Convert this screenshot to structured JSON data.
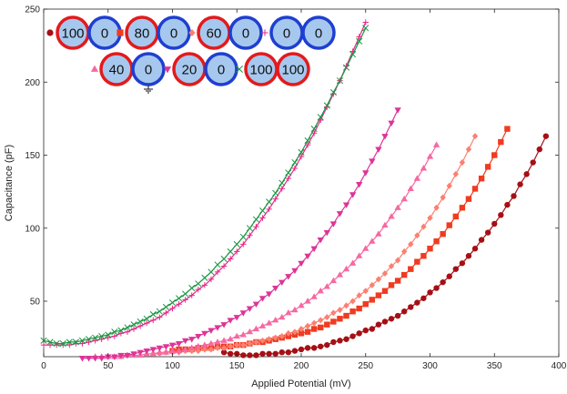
{
  "chart_data": {
    "type": "scatter",
    "xlabel": "Applied Potential (mV)",
    "ylabel": "Capacitance (pF)",
    "xlim": [
      0,
      400
    ],
    "ylim": [
      12,
      250
    ],
    "xticks": [
      "0",
      "50",
      "100",
      "150",
      "200",
      "250",
      "300",
      "350",
      "400"
    ],
    "yticks": [
      "50",
      "100",
      "150",
      "200",
      "250"
    ],
    "grid": false,
    "legend_position": "top-left",
    "series": [
      {
        "name": "100-0",
        "label_a": "100",
        "label_b": "0",
        "marker": "circle",
        "color": "#a50f15",
        "x": [
          140,
          145,
          150,
          155,
          160,
          165,
          170,
          175,
          180,
          185,
          190,
          195,
          200,
          205,
          210,
          215,
          220,
          225,
          230,
          235,
          240,
          245,
          250,
          255,
          260,
          265,
          270,
          275,
          280,
          285,
          290,
          295,
          300,
          305,
          310,
          315,
          320,
          325,
          330,
          335,
          340,
          345,
          350,
          355,
          360,
          365,
          370,
          375,
          380,
          385,
          390
        ],
        "y": [
          15,
          14,
          14,
          13,
          13,
          13,
          14,
          14,
          14,
          15,
          15,
          16,
          17,
          18,
          18,
          19,
          20,
          22,
          23,
          24,
          26,
          28,
          30,
          31,
          34,
          36,
          38,
          40,
          43,
          46,
          49,
          52,
          56,
          59,
          63,
          67,
          72,
          76,
          81,
          86,
          92,
          97,
          103,
          109,
          116,
          122,
          130,
          137,
          145,
          154,
          163
        ]
      },
      {
        "name": "80-0",
        "label_a": "80",
        "label_b": "0",
        "marker": "square",
        "color": "#f03b20",
        "x": [
          100,
          105,
          110,
          115,
          120,
          125,
          130,
          135,
          140,
          145,
          150,
          155,
          160,
          165,
          170,
          175,
          180,
          185,
          190,
          195,
          200,
          205,
          210,
          215,
          220,
          225,
          230,
          235,
          240,
          245,
          250,
          255,
          260,
          265,
          270,
          275,
          280,
          285,
          290,
          295,
          300,
          305,
          310,
          315,
          320,
          325,
          330,
          335,
          340,
          345,
          350,
          355,
          360
        ],
        "y": [
          16,
          17,
          17,
          17,
          18,
          18,
          18,
          19,
          19,
          19,
          20,
          20,
          21,
          22,
          22,
          23,
          24,
          25,
          26,
          27,
          28,
          29,
          31,
          32,
          34,
          36,
          38,
          40,
          43,
          45,
          48,
          51,
          54,
          57,
          61,
          64,
          68,
          72,
          77,
          81,
          86,
          91,
          96,
          102,
          108,
          114,
          120,
          127,
          134,
          142,
          150,
          159,
          168
        ]
      },
      {
        "name": "60-0",
        "label_a": "60",
        "label_b": "0",
        "marker": "diamond",
        "color": "#fb8072",
        "x": [
          85,
          90,
          95,
          100,
          105,
          110,
          115,
          120,
          125,
          130,
          135,
          140,
          145,
          150,
          155,
          160,
          165,
          170,
          175,
          180,
          185,
          190,
          195,
          200,
          205,
          210,
          215,
          220,
          225,
          230,
          235,
          240,
          245,
          250,
          255,
          260,
          265,
          270,
          275,
          280,
          285,
          290,
          295,
          300,
          305,
          310,
          315,
          320,
          325,
          330,
          335
        ],
        "y": [
          14,
          14,
          15,
          15,
          15,
          16,
          16,
          16,
          17,
          17,
          18,
          18,
          19,
          20,
          20,
          21,
          22,
          23,
          24,
          25,
          26,
          28,
          29,
          31,
          33,
          35,
          37,
          39,
          42,
          44,
          47,
          50,
          54,
          57,
          61,
          65,
          69,
          74,
          78,
          84,
          89,
          95,
          101,
          107,
          114,
          121,
          129,
          137,
          145,
          154,
          163
        ]
      },
      {
        "name": "0-0",
        "label_a": "0",
        "label_b": "0",
        "marker": "plus",
        "color": "#e7298a",
        "x": [
          0,
          5,
          10,
          15,
          20,
          25,
          30,
          35,
          40,
          45,
          50,
          55,
          60,
          65,
          70,
          75,
          80,
          85,
          90,
          95,
          100,
          105,
          110,
          115,
          120,
          125,
          130,
          135,
          140,
          145,
          150,
          155,
          160,
          165,
          170,
          175,
          180,
          185,
          190,
          195,
          200,
          205,
          210,
          215,
          220,
          225,
          230,
          235,
          240,
          245,
          250
        ],
        "y": [
          20,
          20,
          20,
          20,
          20,
          21,
          21,
          22,
          23,
          24,
          25,
          26,
          28,
          29,
          31,
          33,
          35,
          37,
          39,
          42,
          45,
          48,
          51,
          54,
          58,
          61,
          65,
          70,
          74,
          79,
          84,
          89,
          95,
          101,
          107,
          113,
          120,
          127,
          134,
          141,
          149,
          157,
          165,
          174,
          183,
          192,
          201,
          211,
          221,
          231,
          241
        ]
      },
      {
        "name": "40-0",
        "label_a": "40",
        "label_b": "0",
        "marker": "triangle-up",
        "color": "#f768a1",
        "x": [
          40,
          45,
          50,
          55,
          60,
          65,
          70,
          75,
          80,
          85,
          90,
          95,
          100,
          105,
          110,
          115,
          120,
          125,
          130,
          135,
          140,
          145,
          150,
          155,
          160,
          165,
          170,
          175,
          180,
          185,
          190,
          195,
          200,
          205,
          210,
          215,
          220,
          225,
          230,
          235,
          240,
          245,
          250,
          255,
          260,
          265,
          270,
          275,
          280,
          285,
          290,
          295,
          300,
          305
        ],
        "y": [
          12,
          12,
          12,
          12,
          12,
          13,
          13,
          13,
          14,
          14,
          15,
          15,
          16,
          16,
          17,
          18,
          19,
          20,
          21,
          22,
          23,
          24,
          26,
          27,
          29,
          31,
          33,
          35,
          37,
          39,
          42,
          44,
          47,
          50,
          53,
          57,
          60,
          64,
          68,
          72,
          76,
          81,
          86,
          91,
          96,
          102,
          108,
          114,
          120,
          127,
          134,
          141,
          149,
          157
        ]
      },
      {
        "name": "20-0",
        "label_a": "20",
        "label_b": "0",
        "marker": "triangle-down",
        "color": "#dd3497",
        "x": [
          30,
          35,
          40,
          45,
          50,
          55,
          60,
          65,
          70,
          75,
          80,
          85,
          90,
          95,
          100,
          105,
          110,
          115,
          120,
          125,
          130,
          135,
          140,
          145,
          150,
          155,
          160,
          165,
          170,
          175,
          180,
          185,
          190,
          195,
          200,
          205,
          210,
          215,
          220,
          225,
          230,
          235,
          240,
          245,
          250,
          255,
          260,
          265,
          270,
          275
        ],
        "y": [
          11,
          11,
          11,
          11,
          12,
          12,
          13,
          13,
          14,
          15,
          16,
          17,
          18,
          19,
          20,
          21,
          23,
          24,
          26,
          28,
          30,
          32,
          34,
          37,
          39,
          42,
          45,
          48,
          52,
          55,
          59,
          63,
          67,
          71,
          76,
          81,
          86,
          92,
          97,
          103,
          110,
          116,
          123,
          130,
          138,
          146,
          154,
          163,
          172,
          181
        ]
      },
      {
        "name": "100-100",
        "label_a": "100",
        "label_b": "100",
        "marker": "cross",
        "color": "#1a9641",
        "x": [
          0,
          5,
          10,
          15,
          20,
          25,
          30,
          35,
          40,
          45,
          50,
          55,
          60,
          65,
          70,
          75,
          80,
          85,
          90,
          95,
          100,
          105,
          110,
          115,
          120,
          125,
          130,
          135,
          140,
          145,
          150,
          155,
          160,
          165,
          170,
          175,
          180,
          185,
          190,
          195,
          200,
          205,
          210,
          215,
          220,
          225,
          230,
          235,
          240,
          245,
          250
        ],
        "y": [
          23,
          22,
          21,
          21,
          22,
          22,
          23,
          24,
          25,
          26,
          27,
          29,
          30,
          32,
          34,
          36,
          38,
          41,
          43,
          46,
          49,
          52,
          55,
          59,
          62,
          66,
          70,
          75,
          79,
          84,
          89,
          94,
          100,
          106,
          112,
          118,
          124,
          131,
          138,
          145,
          152,
          160,
          168,
          176,
          184,
          193,
          201,
          210,
          219,
          228,
          237
        ]
      }
    ]
  }
}
